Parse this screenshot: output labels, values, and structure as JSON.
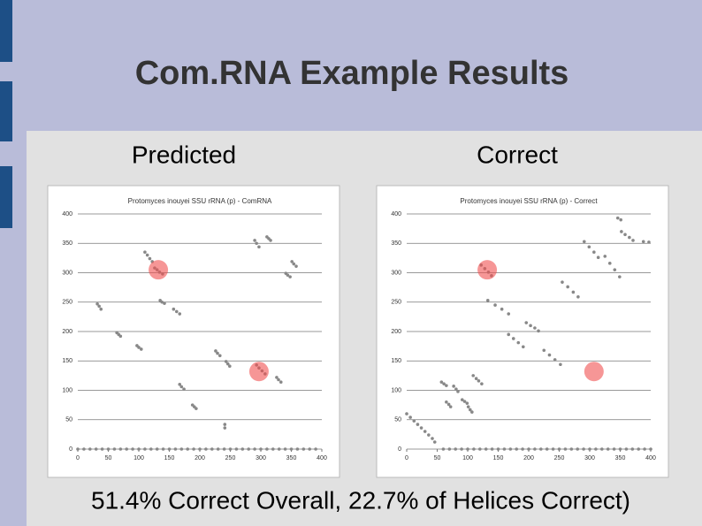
{
  "slide": {
    "title": "Com.RNA Example Results",
    "footer": "51.4% Correct Overall, 22.7% of Helices Correct)"
  },
  "chart_data": [
    {
      "type": "scatter",
      "label": "Predicted",
      "title": "Protomyces inouyei SSU rRNA (p) - ComRNA",
      "color": "#888888",
      "x": [
        32,
        35,
        38,
        64,
        67,
        70,
        97,
        100,
        104,
        110,
        114,
        118,
        122,
        126,
        130,
        134,
        139,
        135,
        138,
        142,
        157,
        162,
        167,
        167,
        170,
        174,
        188,
        191,
        194,
        226,
        229,
        233,
        243,
        246,
        249,
        241,
        241,
        290,
        293,
        297,
        310,
        313,
        316,
        293,
        297,
        302,
        307,
        326,
        329,
        333,
        341,
        344,
        348,
        351,
        354,
        358,
        0,
        10,
        20,
        30,
        40,
        50,
        60,
        70,
        80,
        90,
        100,
        110,
        120,
        130,
        140,
        150,
        160,
        170,
        180,
        190,
        200,
        210,
        220,
        230,
        240,
        250,
        260,
        270,
        280,
        290,
        300,
        310,
        320,
        330,
        340,
        350,
        360,
        370,
        380,
        390
      ],
      "y": [
        247,
        243,
        238,
        198,
        195,
        192,
        176,
        173,
        170,
        335,
        330,
        324,
        319,
        308,
        305,
        301,
        298,
        253,
        250,
        248,
        238,
        234,
        230,
        110,
        106,
        102,
        75,
        72,
        69,
        167,
        163,
        159,
        149,
        145,
        141,
        42,
        36,
        355,
        350,
        344,
        361,
        358,
        355,
        143,
        138,
        133,
        128,
        122,
        118,
        114,
        299,
        296,
        293,
        319,
        315,
        311,
        0,
        0,
        0,
        0,
        0,
        0,
        0,
        0,
        0,
        0,
        0,
        0,
        0,
        0,
        0,
        0,
        0,
        0,
        0,
        0,
        0,
        0,
        0,
        0,
        0,
        0,
        0,
        0,
        0,
        0,
        0,
        0,
        0,
        0,
        0,
        0,
        0,
        0,
        0,
        0
      ],
      "highlights": {
        "x": [
          132,
          297
        ],
        "y": [
          305,
          132
        ]
      },
      "xlim": [
        0,
        400
      ],
      "ylim": [
        0,
        400
      ],
      "xticks": [
        0,
        50,
        100,
        150,
        200,
        250,
        300,
        350,
        400
      ],
      "yticks": [
        0,
        50,
        100,
        150,
        200,
        250,
        300,
        350,
        400
      ],
      "grid": true
    },
    {
      "type": "scatter",
      "label": "Correct",
      "title": "Protomyces inouyei SSU rRNA (p) - Correct",
      "color": "#888888",
      "x": [
        0,
        6,
        12,
        18,
        24,
        30,
        36,
        42,
        46,
        57,
        61,
        65,
        65,
        69,
        72,
        77,
        81,
        84,
        91,
        95,
        99,
        101,
        104,
        107,
        109,
        114,
        118,
        123,
        122,
        128,
        134,
        139,
        133,
        145,
        156,
        167,
        167,
        175,
        183,
        191,
        196,
        203,
        210,
        216,
        225,
        234,
        243,
        252,
        255,
        264,
        273,
        281,
        291,
        299,
        307,
        314,
        325,
        333,
        341,
        349,
        346,
        351,
        352,
        358,
        365,
        371,
        388,
        397,
        60,
        70,
        80,
        90,
        100,
        110,
        120,
        130,
        140,
        150,
        160,
        170,
        180,
        190,
        200,
        210,
        220,
        230,
        240,
        250,
        260,
        270,
        280,
        290,
        300,
        310,
        320,
        330,
        340,
        350,
        360,
        370,
        380,
        390,
        400
      ],
      "y": [
        60,
        54,
        48,
        42,
        36,
        30,
        24,
        18,
        12,
        114,
        111,
        108,
        80,
        76,
        72,
        107,
        102,
        98,
        84,
        81,
        78,
        72,
        67,
        63,
        125,
        120,
        116,
        111,
        313,
        307,
        301,
        295,
        253,
        245,
        238,
        230,
        195,
        188,
        181,
        174,
        215,
        210,
        206,
        201,
        168,
        160,
        152,
        144,
        284,
        276,
        267,
        259,
        353,
        344,
        335,
        326,
        328,
        316,
        305,
        293,
        393,
        390,
        370,
        365,
        360,
        355,
        353,
        352,
        0,
        0,
        0,
        0,
        0,
        0,
        0,
        0,
        0,
        0,
        0,
        0,
        0,
        0,
        0,
        0,
        0,
        0,
        0,
        0,
        0,
        0,
        0,
        0,
        0,
        0,
        0,
        0,
        0,
        0,
        0,
        0,
        0,
        0,
        0
      ],
      "highlights": {
        "x": [
          132,
          307
        ],
        "y": [
          305,
          132
        ]
      },
      "xlim": [
        0,
        400
      ],
      "ylim": [
        0,
        400
      ],
      "xticks": [
        0,
        50,
        100,
        150,
        200,
        250,
        300,
        350,
        400
      ],
      "yticks": [
        0,
        50,
        100,
        150,
        200,
        250,
        300,
        350,
        400
      ],
      "grid": true
    }
  ]
}
